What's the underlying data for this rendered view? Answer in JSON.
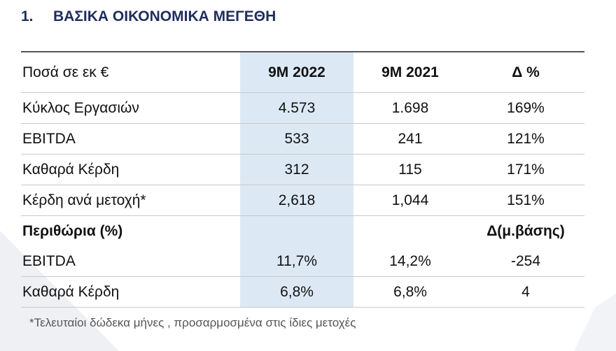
{
  "header": {
    "number": "1.",
    "title": "ΒΑΣΙΚΑ ΟΙΚΟΝΟΜΙΚΑ ΜΕΓΕΘΗ"
  },
  "table": {
    "columns": [
      "Ποσά σε εκ €",
      "9M 2022",
      "9M 2021",
      "Δ %"
    ],
    "rows": [
      [
        "Κύκλος Εργασιών",
        "4.573",
        "1.698",
        "169%"
      ],
      [
        "EBITDA",
        "533",
        "241",
        "121%"
      ],
      [
        "Καθαρά Κέρδη",
        "312",
        "115",
        "171%"
      ],
      [
        "Κέρδη ανά μετοχή*",
        "2,618",
        "1,044",
        "151%"
      ],
      [
        "Περιθώρια (%)",
        null,
        null,
        "Δ(μ.βάσης)"
      ],
      [
        "EBITDA",
        "11,7%",
        "14,2%",
        "-254"
      ],
      [
        "Καθαρά Κέρδη",
        "6,8%",
        "6,8%",
        "4"
      ]
    ]
  },
  "footnote": "*Τελευταίοι δώδεκα μήνες , προσαρμοσμένα στις ίδιες μετοχές"
}
